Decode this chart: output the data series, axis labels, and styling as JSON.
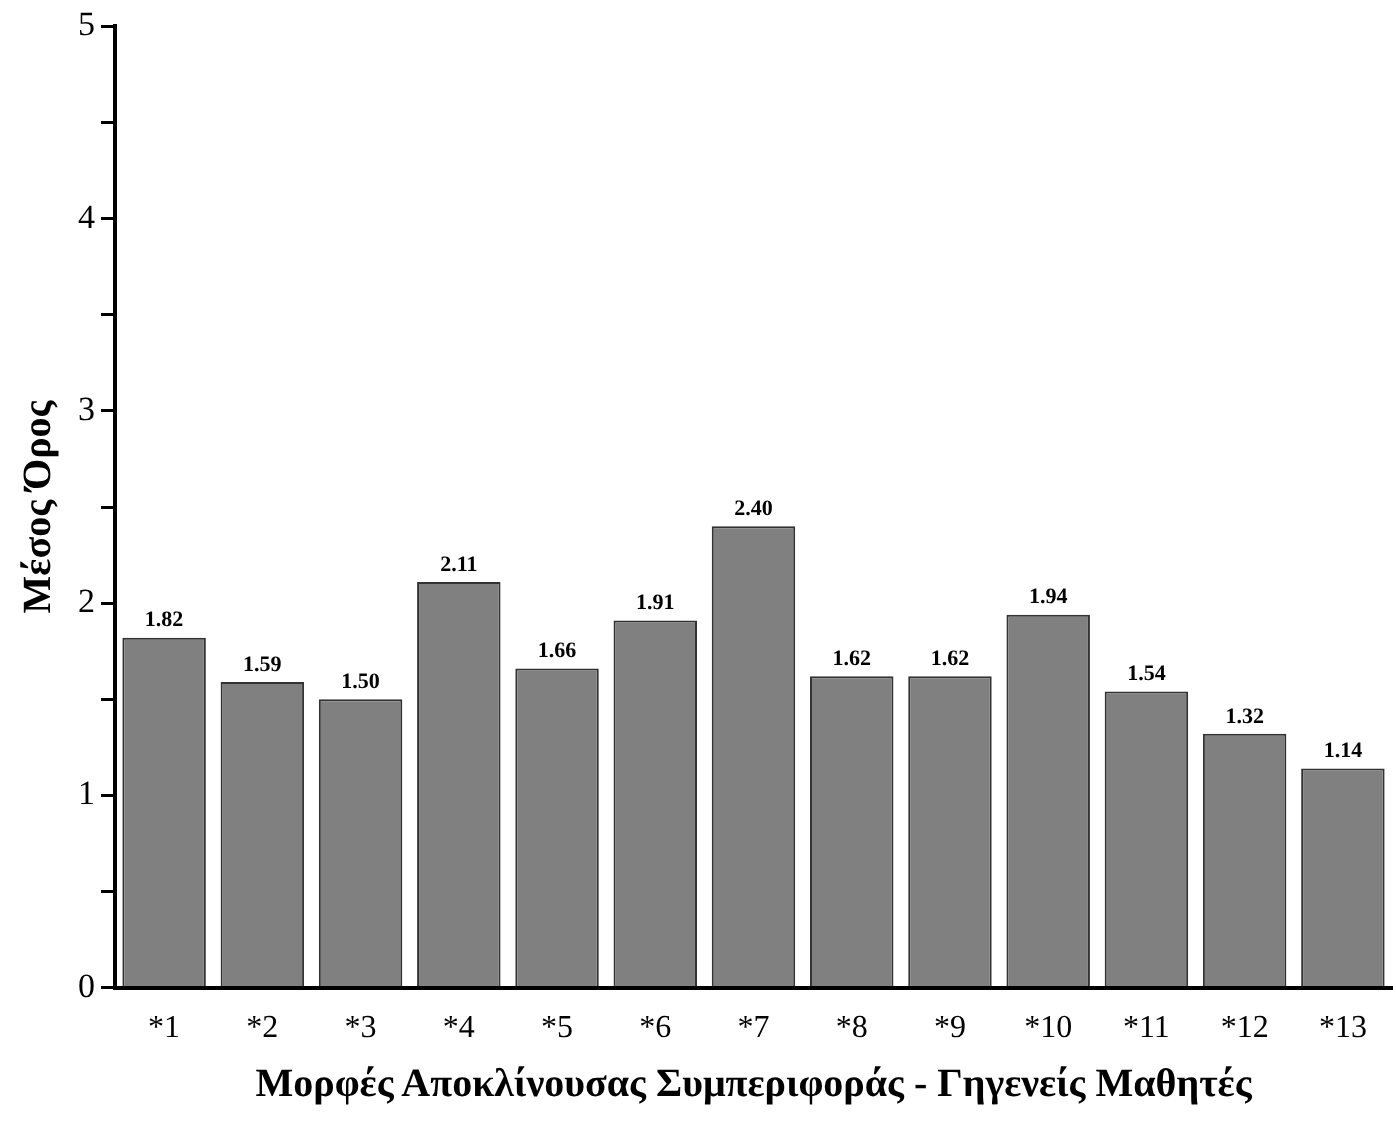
{
  "chart_data": {
    "type": "bar",
    "xlabel": "Μορφές Αποκλίνουσας Συμπεριφοράς - Γηγενείς Μαθητές",
    "ylabel": "Μέσος Όρος",
    "categories": [
      "*1",
      "*2",
      "*3",
      "*4",
      "*5",
      "*6",
      "*7",
      "*8",
      "*9",
      "*10",
      "*11",
      "*12",
      "*13"
    ],
    "values": [
      1.82,
      1.59,
      1.5,
      2.11,
      1.66,
      1.91,
      2.4,
      1.62,
      1.62,
      1.94,
      1.54,
      1.32,
      1.14
    ],
    "color": "#808080",
    "ylim": [
      0,
      5
    ],
    "yticks": [
      0,
      {
        "value": 0.5,
        "label": null
      },
      1,
      {
        "value": 1.5,
        "label": null
      },
      2,
      {
        "value": 2.5,
        "label": null
      },
      3,
      {
        "value": 3.5,
        "label": null
      },
      4,
      {
        "value": 4.5,
        "label": null
      },
      5
    ],
    "data_labels": true,
    "value_labels": [
      "1.82",
      "1.59",
      "1.50",
      "2.11",
      "1.66",
      "1.91",
      "2.40",
      "1.62",
      "1.62",
      "1.94",
      "1.54",
      "1.32",
      "1.14"
    ],
    "grid": false,
    "legend": false
  }
}
